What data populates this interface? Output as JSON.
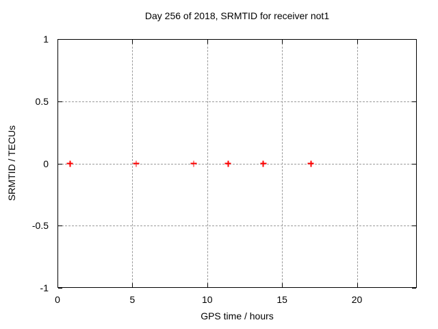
{
  "chart_data": {
    "type": "scatter",
    "title": "Day 256 of 2018, SRMTID for receiver not1",
    "xlabel": "GPS time / hours",
    "ylabel": "SRMTID / TECUs",
    "xlim": [
      0,
      24
    ],
    "ylim": [
      -1,
      1
    ],
    "xticks": [
      0,
      5,
      10,
      15,
      20
    ],
    "yticks": [
      1,
      0.5,
      0,
      -0.5,
      -1
    ],
    "grid": true,
    "legend": "none",
    "marker": "plus",
    "colors": {
      "marker": "#ff0000",
      "grid": "#9a9a9a",
      "axis": "#000000",
      "text": "#000000",
      "background": "#ffffff"
    },
    "series": [
      {
        "name": "SRMTID",
        "x": [
          0.79,
          5.2,
          9.04,
          11.35,
          13.7,
          16.88
        ],
        "y": [
          0,
          0,
          0,
          0,
          0,
          0
        ]
      }
    ]
  }
}
